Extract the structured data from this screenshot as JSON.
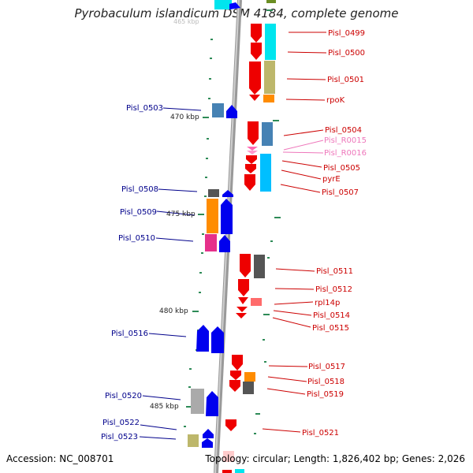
{
  "header": {
    "title": "Pyrobaculum islandicum DSM 4184, complete genome"
  },
  "footer": {
    "accession": "Accession: NC_008701",
    "summary": "Topology: circular; Length: 1,826,402 bp; Genes: 2,026"
  },
  "scale_labels": [
    {
      "id": "tick-470",
      "text": "470 kbp"
    },
    {
      "id": "tick-475",
      "text": "475 kbp"
    },
    {
      "id": "tick-480",
      "text": "480 kbp"
    },
    {
      "id": "tick-485",
      "text": "485 kbp"
    }
  ],
  "gene_labels": [
    {
      "id": "pisl-0499",
      "text": "Pisl_0499",
      "color": "#cc0000"
    },
    {
      "id": "pisl-0500",
      "text": "Pisl_0500",
      "color": "#cc0000"
    },
    {
      "id": "pisl-0501",
      "text": "Pisl_0501",
      "color": "#cc0000"
    },
    {
      "id": "rpok",
      "text": "rpoK",
      "color": "#cc0000"
    },
    {
      "id": "pisl-0503",
      "text": "Pisl_0503",
      "color": "#00008b"
    },
    {
      "id": "pisl-0504",
      "text": "Pisl_0504",
      "color": "#cc0000"
    },
    {
      "id": "pisl-r0015",
      "text": "Pisl_R0015",
      "color": "#ee77bb"
    },
    {
      "id": "pisl-r0016",
      "text": "Pisl_R0016",
      "color": "#ee77bb"
    },
    {
      "id": "pisl-0505",
      "text": "Pisl_0505",
      "color": "#cc0000"
    },
    {
      "id": "pyre",
      "text": "pyrE",
      "color": "#cc0000"
    },
    {
      "id": "pisl-0507",
      "text": "Pisl_0507",
      "color": "#cc0000"
    },
    {
      "id": "pisl-0508",
      "text": "Pisl_0508",
      "color": "#00008b"
    },
    {
      "id": "pisl-0509",
      "text": "Pisl_0509",
      "color": "#00008b"
    },
    {
      "id": "pisl-0510",
      "text": "Pisl_0510",
      "color": "#00008b"
    },
    {
      "id": "pisl-0511",
      "text": "Pisl_0511",
      "color": "#cc0000"
    },
    {
      "id": "pisl-0512",
      "text": "Pisl_0512",
      "color": "#cc0000"
    },
    {
      "id": "rpl14p",
      "text": "rpl14p",
      "color": "#cc0000"
    },
    {
      "id": "pisl-0514",
      "text": "Pisl_0514",
      "color": "#cc0000"
    },
    {
      "id": "pisl-0515",
      "text": "Pisl_0515",
      "color": "#cc0000"
    },
    {
      "id": "pisl-0516",
      "text": "Pisl_0516",
      "color": "#00008b"
    },
    {
      "id": "pisl-0517",
      "text": "Pisl_0517",
      "color": "#cc0000"
    },
    {
      "id": "pisl-0518",
      "text": "Pisl_0518",
      "color": "#cc0000"
    },
    {
      "id": "pisl-0519",
      "text": "Pisl_0519",
      "color": "#cc0000"
    },
    {
      "id": "pisl-0520",
      "text": "Pisl_0520",
      "color": "#00008b"
    },
    {
      "id": "pisl-0521",
      "text": "Pisl_0521",
      "color": "#cc0000"
    },
    {
      "id": "pisl-0522",
      "text": "Pisl_0522",
      "color": "#00008b"
    },
    {
      "id": "pisl-0523",
      "text": "Pisl_0523",
      "color": "#00008b"
    }
  ]
}
